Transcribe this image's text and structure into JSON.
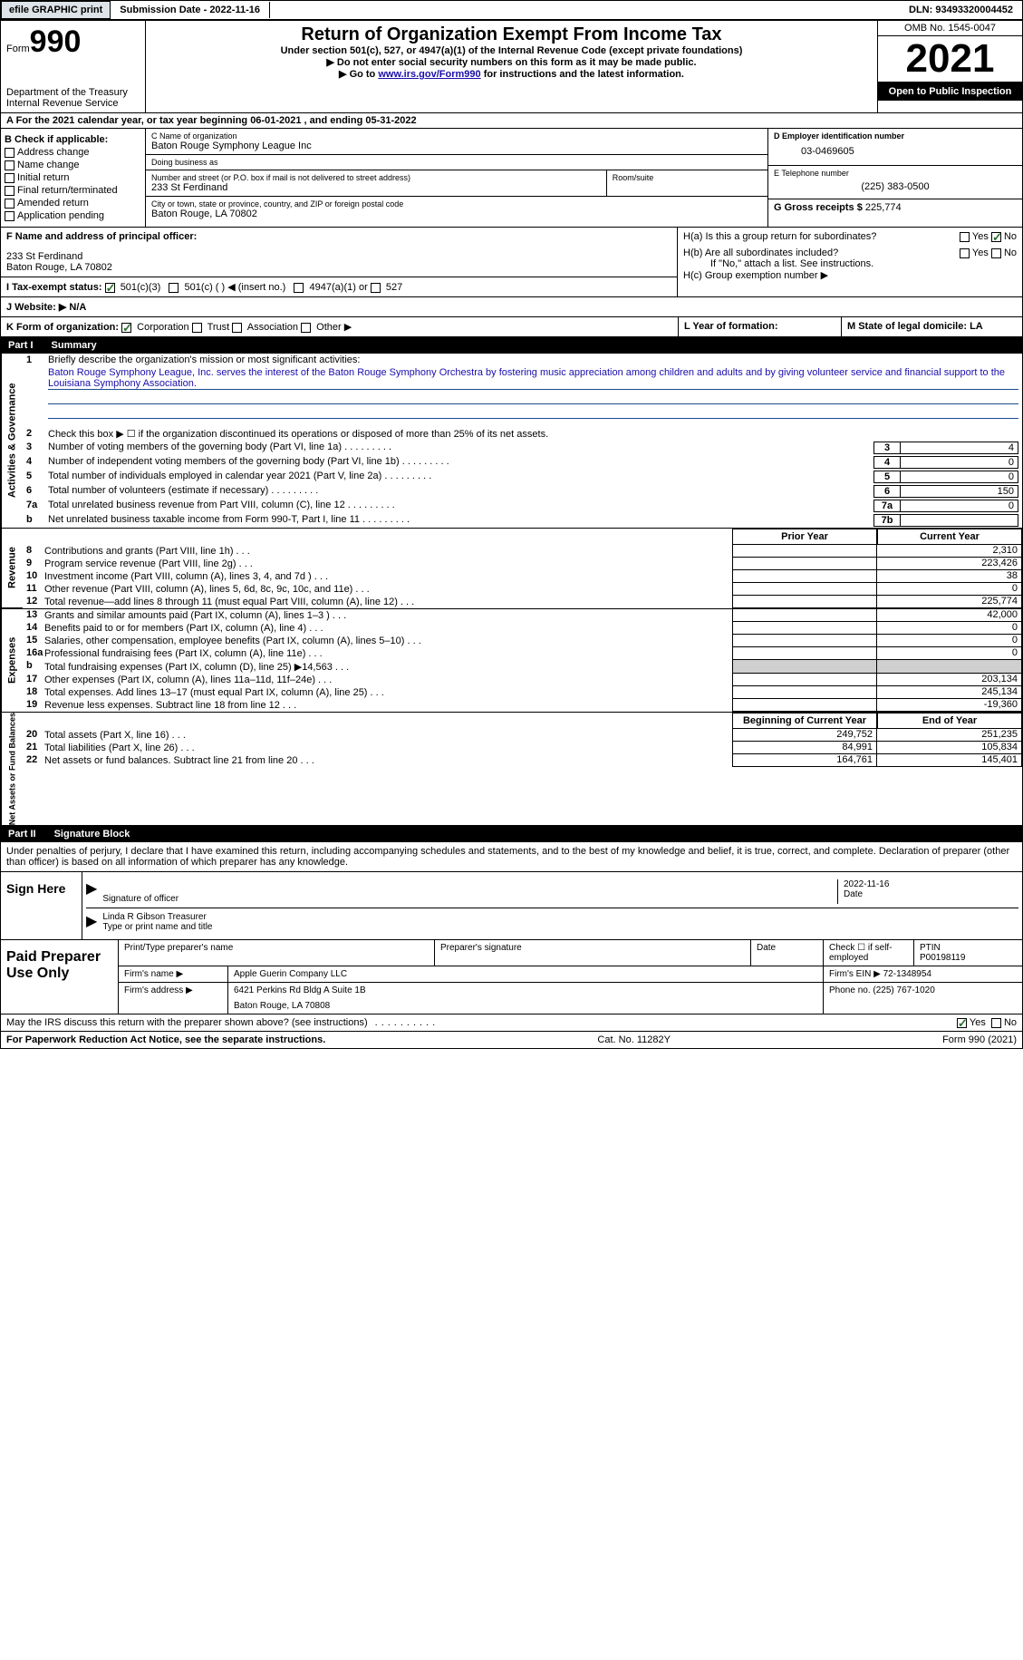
{
  "topbar": {
    "efile_btn": "efile GRAPHIC print",
    "submission": "Submission Date - 2022-11-16",
    "dln": "DLN: 93493320004452"
  },
  "header": {
    "form_label": "Form",
    "form_num": "990",
    "dept1": "Department of the Treasury",
    "dept2": "Internal Revenue Service",
    "title": "Return of Organization Exempt From Income Tax",
    "sub1": "Under section 501(c), 527, or 4947(a)(1) of the Internal Revenue Code (except private foundations)",
    "sub2": "▶ Do not enter social security numbers on this form as it may be made public.",
    "sub3_pre": "▶ Go to ",
    "sub3_link": "www.irs.gov/Form990",
    "sub3_post": " for instructions and the latest information.",
    "omb": "OMB No. 1545-0047",
    "year": "2021",
    "open": "Open to Public Inspection"
  },
  "lineA": "A For the 2021 calendar year, or tax year beginning 06-01-2021    , and ending 05-31-2022",
  "colB": {
    "title": "B Check if applicable:",
    "items": [
      "Address change",
      "Name change",
      "Initial return",
      "Final return/terminated",
      "Amended return",
      "Application pending"
    ]
  },
  "colC": {
    "name_label": "C Name of organization",
    "name": "Baton Rouge Symphony League Inc",
    "dba_label": "Doing business as",
    "dba": "",
    "addr_label": "Number and street (or P.O. box if mail is not delivered to street address)",
    "addr": "233 St Ferdinand",
    "room_label": "Room/suite",
    "city_label": "City or town, state or province, country, and ZIP or foreign postal code",
    "city": "Baton Rouge, LA  70802"
  },
  "colD": {
    "ein_label": "D Employer identification number",
    "ein": "03-0469605",
    "tel_label": "E Telephone number",
    "tel": "(225) 383-0500",
    "gross_label": "G Gross receipts $",
    "gross": "225,774"
  },
  "rowF": {
    "label": "F Name and address of principal officer:",
    "line1": "233 St Ferdinand",
    "line2": "Baton Rouge, LA  70802"
  },
  "rowH": {
    "ha": "H(a)  Is this a group return for subordinates?",
    "hb": "H(b)  Are all subordinates included?",
    "hb_note": "If \"No,\" attach a list. See instructions.",
    "hc": "H(c)  Group exemption number ▶"
  },
  "rowI": {
    "label": "I   Tax-exempt status:",
    "opt1": "501(c)(3)",
    "opt2": "501(c) (  ) ◀ (insert no.)",
    "opt3": "4947(a)(1) or",
    "opt4": "527"
  },
  "rowJ": "J   Website: ▶   N/A",
  "rowK": {
    "label": "K Form of organization:",
    "opts": [
      "Corporation",
      "Trust",
      "Association",
      "Other ▶"
    ]
  },
  "rowL": "L Year of formation:",
  "rowM": "M State of legal domicile: LA",
  "part1": {
    "header_num": "Part I",
    "header_txt": "Summary",
    "q1": "Briefly describe the organization's mission or most significant activities:",
    "q1_text": "Baton Rouge Symphony League, Inc. serves the interest of the Baton Rouge Symphony Orchestra by fostering music appreciation among children and adults and by giving volunteer service and financial support to the Louisiana Symphony Association.",
    "q2": "Check this box ▶ ☐  if the organization discontinued its operations or disposed of more than 25% of its net assets.",
    "lines": [
      {
        "n": "3",
        "t": "Number of voting members of the governing body (Part VI, line 1a)",
        "box": "3",
        "v": "4"
      },
      {
        "n": "4",
        "t": "Number of independent voting members of the governing body (Part VI, line 1b)",
        "box": "4",
        "v": "0"
      },
      {
        "n": "5",
        "t": "Total number of individuals employed in calendar year 2021 (Part V, line 2a)",
        "box": "5",
        "v": "0"
      },
      {
        "n": "6",
        "t": "Total number of volunteers (estimate if necessary)",
        "box": "6",
        "v": "150"
      },
      {
        "n": "7a",
        "t": "Total unrelated business revenue from Part VIII, column (C), line 12",
        "box": "7a",
        "v": "0"
      },
      {
        "n": "b",
        "t": "Net unrelated business taxable income from Form 990-T, Part I, line 11",
        "box": "7b",
        "v": ""
      }
    ],
    "col_prior": "Prior Year",
    "col_curr": "Current Year",
    "revenue": [
      {
        "n": "8",
        "t": "Contributions and grants (Part VIII, line 1h)",
        "p": "",
        "c": "2,310"
      },
      {
        "n": "9",
        "t": "Program service revenue (Part VIII, line 2g)",
        "p": "",
        "c": "223,426"
      },
      {
        "n": "10",
        "t": "Investment income (Part VIII, column (A), lines 3, 4, and 7d )",
        "p": "",
        "c": "38"
      },
      {
        "n": "11",
        "t": "Other revenue (Part VIII, column (A), lines 5, 6d, 8c, 9c, 10c, and 11e)",
        "p": "",
        "c": "0"
      },
      {
        "n": "12",
        "t": "Total revenue—add lines 8 through 11 (must equal Part VIII, column (A), line 12)",
        "p": "",
        "c": "225,774"
      }
    ],
    "expenses": [
      {
        "n": "13",
        "t": "Grants and similar amounts paid (Part IX, column (A), lines 1–3 )",
        "p": "",
        "c": "42,000"
      },
      {
        "n": "14",
        "t": "Benefits paid to or for members (Part IX, column (A), line 4)",
        "p": "",
        "c": "0"
      },
      {
        "n": "15",
        "t": "Salaries, other compensation, employee benefits (Part IX, column (A), lines 5–10)",
        "p": "",
        "c": "0"
      },
      {
        "n": "16a",
        "t": "Professional fundraising fees (Part IX, column (A), line 11e)",
        "p": "",
        "c": "0"
      },
      {
        "n": "b",
        "t": "Total fundraising expenses (Part IX, column (D), line 25) ▶14,563",
        "p": "SHADE",
        "c": "SHADE"
      },
      {
        "n": "17",
        "t": "Other expenses (Part IX, column (A), lines 11a–11d, 11f–24e)",
        "p": "",
        "c": "203,134"
      },
      {
        "n": "18",
        "t": "Total expenses. Add lines 13–17 (must equal Part IX, column (A), line 25)",
        "p": "",
        "c": "245,134"
      },
      {
        "n": "19",
        "t": "Revenue less expenses. Subtract line 18 from line 12",
        "p": "",
        "c": "-19,360"
      }
    ],
    "col_begin": "Beginning of Current Year",
    "col_end": "End of Year",
    "netassets": [
      {
        "n": "20",
        "t": "Total assets (Part X, line 16)",
        "p": "249,752",
        "c": "251,235"
      },
      {
        "n": "21",
        "t": "Total liabilities (Part X, line 26)",
        "p": "84,991",
        "c": "105,834"
      },
      {
        "n": "22",
        "t": "Net assets or fund balances. Subtract line 21 from line 20",
        "p": "164,761",
        "c": "145,401"
      }
    ],
    "side_gov": "Activities & Governance",
    "side_rev": "Revenue",
    "side_exp": "Expenses",
    "side_net": "Net Assets or Fund Balances"
  },
  "part2": {
    "header_num": "Part II",
    "header_txt": "Signature Block",
    "perjury": "Under penalties of perjury, I declare that I have examined this return, including accompanying schedules and statements, and to the best of my knowledge and belief, it is true, correct, and complete. Declaration of preparer (other than officer) is based on all information of which preparer has any knowledge."
  },
  "sign": {
    "label": "Sign Here",
    "sig_label": "Signature of officer",
    "date": "2022-11-16",
    "date_label": "Date",
    "name": "Linda R Gibson  Treasurer",
    "name_label": "Type or print name and title"
  },
  "prep": {
    "label": "Paid Preparer Use Only",
    "r1": {
      "c1": "Print/Type preparer's name",
      "c2": "Preparer's signature",
      "c3": "Date",
      "c4_label": "Check ☐ if self-employed",
      "c5_label": "PTIN",
      "c5": "P00198119"
    },
    "r2": {
      "label": "Firm's name    ▶",
      "val": "Apple Guerin Company LLC",
      "ein_label": "Firm's EIN ▶",
      "ein": "72-1348954"
    },
    "r3": {
      "label": "Firm's address ▶",
      "val": "6421 Perkins Rd Bldg A Suite 1B",
      "val2": "Baton Rouge, LA  70808",
      "tel_label": "Phone no.",
      "tel": "(225) 767-1020"
    }
  },
  "footer": {
    "discuss": "May the IRS discuss this return with the preparer shown above? (see instructions)",
    "paperwork": "For Paperwork Reduction Act Notice, see the separate instructions.",
    "cat": "Cat. No. 11282Y",
    "form": "Form 990 (2021)"
  }
}
